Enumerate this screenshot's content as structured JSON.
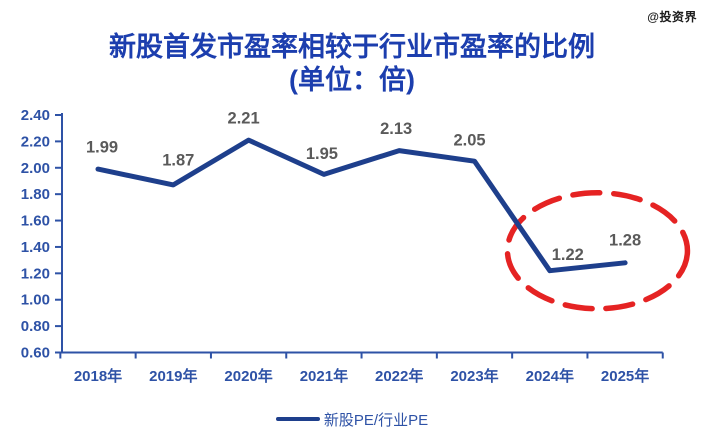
{
  "watermark": "@投资界",
  "title": {
    "line1": "新股首发市盈率相较于行业市盈率的比例",
    "line2": "(单位：倍)"
  },
  "legend": {
    "label": "新股PE/行业PE"
  },
  "chart_data": {
    "type": "line",
    "title": "新股首发市盈率相较于行业市盈率的比例",
    "subtitle": "(单位：倍)",
    "categories": [
      "2018年",
      "2019年",
      "2020年",
      "2021年",
      "2022年",
      "2023年",
      "2024年",
      "2025年"
    ],
    "series": [
      {
        "name": "新股PE/行业PE",
        "values": [
          1.99,
          1.87,
          2.21,
          1.95,
          2.13,
          2.05,
          1.22,
          1.28
        ],
        "data_labels": [
          "1.99",
          "1.87",
          "2.21",
          "1.95",
          "2.13",
          "2.05",
          "1.22",
          "1.28"
        ]
      }
    ],
    "xlabel": "",
    "ylabel": "",
    "ylim": [
      0.6,
      2.4
    ],
    "ytick_labels": [
      "2.40",
      "2.20",
      "2.00",
      "1.80",
      "1.60",
      "1.40",
      "1.20",
      "1.00",
      "0.80",
      "0.60"
    ],
    "grid": false,
    "legend_position": "bottom",
    "annotations": [
      {
        "type": "ellipse-highlight",
        "targets": [
          "2024年",
          "2025年"
        ],
        "style": "dashed",
        "color": "#e52323"
      }
    ]
  },
  "colors": {
    "title": "#1c3eae",
    "axis": "#2e52a6",
    "tick_label": "#2e52a6",
    "series_line": "#1e3f8c",
    "data_label": "#5a5a5a",
    "highlight": "#e52323",
    "watermark": "#1c1c1c",
    "background": "#ffffff"
  }
}
